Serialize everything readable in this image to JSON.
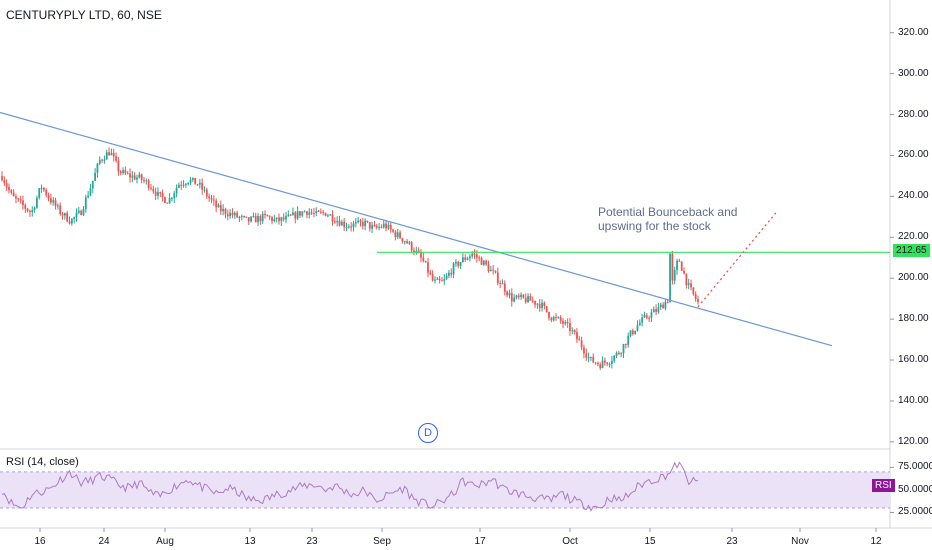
{
  "header": {
    "title": "CENTURYPLY LTD, 60, NSE"
  },
  "annotation": {
    "line1": "Potential Bounceback and",
    "line2": "upswing for the stock"
  },
  "badge": {
    "label": "D"
  },
  "price_tag": "212.65",
  "rsi": {
    "label": "RSI (14, close)",
    "tag": "RSI",
    "ticks": [
      "75.0000",
      "50.0000",
      "25.0000"
    ]
  },
  "colors": {
    "up": "#26a69a",
    "down": "#ef5350",
    "trendline": "#6a98d6",
    "support": "#33e25b",
    "rsi_line": "#a97cc0",
    "rsi_band": "#ece2f7",
    "projection": "#ef5350"
  },
  "chart_data": {
    "type": "candlestick",
    "title": "CENTURYPLY LTD, 60, NSE",
    "y_ticks": [
      320,
      300,
      280,
      260,
      240,
      220,
      200,
      180,
      160,
      140,
      120
    ],
    "ylim": [
      117,
      336
    ],
    "x_ticks": [
      "16",
      "24",
      "Aug",
      "13",
      "23",
      "Sep",
      "17",
      "Oct",
      "15",
      "23",
      "Nov",
      "12"
    ],
    "series_approx_close": [
      250,
      240,
      236,
      232,
      245,
      238,
      232,
      228,
      232,
      244,
      258,
      262,
      252,
      250,
      249,
      246,
      240,
      238,
      246,
      248,
      246,
      240,
      234,
      232,
      230,
      228,
      229,
      230,
      228,
      229,
      231,
      233,
      231,
      232,
      229,
      226,
      226,
      227,
      224,
      226,
      222,
      219,
      214,
      208,
      198,
      198,
      205,
      209,
      212,
      208,
      203,
      197,
      190,
      190,
      189,
      187,
      181,
      179,
      175,
      168,
      160,
      158,
      160,
      164,
      172,
      178,
      182,
      185,
      190,
      210,
      196,
      188
    ],
    "trendline": {
      "start": 281,
      "end": 167
    },
    "support_level": 212.65,
    "projection": {
      "start": 186,
      "end": 232
    },
    "rsi": {
      "values": [
        50,
        35,
        30,
        45,
        48,
        52,
        62,
        70,
        58,
        60,
        65,
        62,
        55,
        52,
        58,
        48,
        42,
        50,
        56,
        62,
        55,
        50,
        45,
        52,
        48,
        40,
        38,
        40,
        45,
        48,
        52,
        55,
        56,
        50,
        55,
        48,
        45,
        50,
        38,
        42,
        48,
        52,
        40,
        35,
        32,
        38,
        45,
        60,
        55,
        56,
        62,
        52,
        48,
        45,
        42,
        40,
        38,
        46,
        40,
        35,
        32,
        30,
        42,
        38,
        45,
        55,
        60,
        63,
        68,
        80,
        60,
        58
      ],
      "levels": [
        75,
        50,
        25
      ],
      "band": [
        70,
        30
      ]
    }
  }
}
